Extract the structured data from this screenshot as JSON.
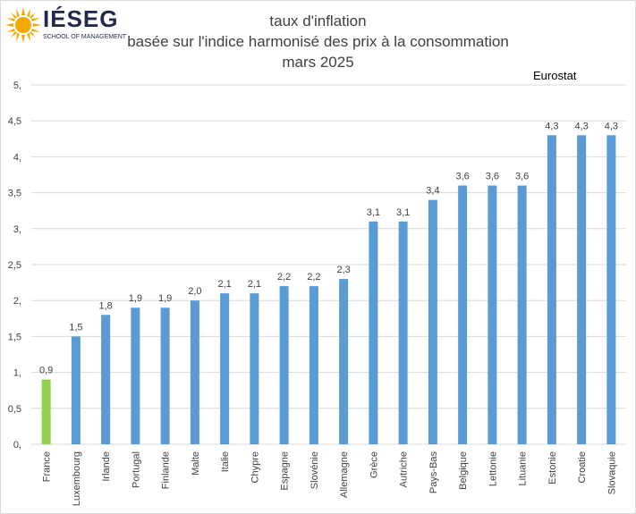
{
  "logo": {
    "word": "IÉSEG",
    "subtitle": "SCHOOL OF MANAGEMENT"
  },
  "title": {
    "line1": "taux d'inflation",
    "line2": "basée sur l'indice harmonisé des prix à la consommation",
    "line3": "mars 2025"
  },
  "source": "Eurostat",
  "colors": {
    "highlight": "#92d050",
    "bar": "#5b9bd5",
    "grid": "#d9d9d9"
  },
  "chart_data": {
    "type": "bar",
    "categories": [
      "France",
      "Luxembourg",
      "Irlande",
      "Portugal",
      "Finlande",
      "Malte",
      "Italie",
      "Chypre",
      "Espagne",
      "Slovénie",
      "Allemagne",
      "Grèce",
      "Autriche",
      "Pays-Bas",
      "Belgique",
      "Lettonie",
      "Lituanie",
      "Estonie",
      "Croatie",
      "Slovaquie"
    ],
    "values": [
      0.9,
      1.5,
      1.8,
      1.9,
      1.9,
      2.0,
      2.1,
      2.1,
      2.2,
      2.2,
      2.3,
      3.1,
      3.1,
      3.4,
      3.6,
      3.6,
      3.6,
      4.3,
      4.3,
      4.3
    ],
    "data_labels": [
      "0,9",
      "1,5",
      "1,8",
      "1,9",
      "1,9",
      "2,0",
      "2,1",
      "2,1",
      "2,2",
      "2,2",
      "2,3",
      "3,1",
      "3,1",
      "3,4",
      "3,6",
      "3,6",
      "3,6",
      "4,3",
      "4,3",
      "4,3"
    ],
    "highlight_index": 0,
    "y_ticks": [
      0,
      0.5,
      1,
      1.5,
      2,
      2.5,
      3,
      3.5,
      4,
      4.5,
      5
    ],
    "y_tick_labels": [
      "0,",
      "0,5",
      "1,",
      "1,5",
      "2,",
      "2,5",
      "3,",
      "3,5",
      "4,",
      "4,5",
      "5,"
    ],
    "ylim": [
      0,
      5
    ],
    "grid": true,
    "legend": "none"
  }
}
